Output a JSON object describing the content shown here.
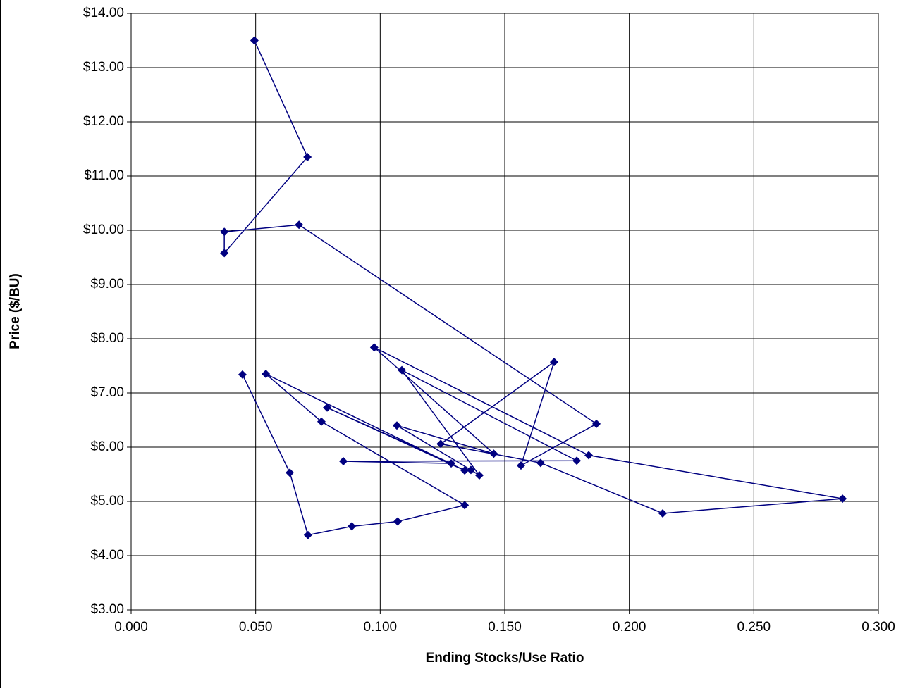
{
  "chart_data": {
    "type": "scatter-line",
    "x_label": "Ending Stocks/Use Ratio",
    "y_label": "Price ($/BU)",
    "xlim": [
      0,
      0.3
    ],
    "ylim": [
      3,
      14
    ],
    "xticks": [
      {
        "value": 0,
        "label": "0.000"
      },
      {
        "value": 0.05,
        "label": "0.050"
      },
      {
        "value": 0.1,
        "label": "0.100"
      },
      {
        "value": 0.15,
        "label": "0.150"
      },
      {
        "value": 0.2,
        "label": "0.200"
      },
      {
        "value": 0.25,
        "label": "0.250"
      },
      {
        "value": 0.3,
        "label": "0.300"
      }
    ],
    "yticks": [
      {
        "value": 3,
        "label": "$3.00"
      },
      {
        "value": 4,
        "label": "$4.00"
      },
      {
        "value": 5,
        "label": "$5.00"
      },
      {
        "value": 6,
        "label": "$6.00"
      },
      {
        "value": 7,
        "label": "$7.00"
      },
      {
        "value": 8,
        "label": "$8.00"
      },
      {
        "value": 9,
        "label": "$9.00"
      },
      {
        "value": 10,
        "label": "$10.00"
      },
      {
        "value": 11,
        "label": "$11.00"
      },
      {
        "value": 12,
        "label": "$12.00"
      },
      {
        "value": 13,
        "label": "$13.00"
      },
      {
        "value": 14,
        "label": "$14.00"
      }
    ],
    "grid": true,
    "series": [
      {
        "color": "#000080",
        "x": [
          0.0447,
          0.0637,
          0.071,
          0.0886,
          0.107,
          0.1339,
          0.0764,
          0.0541,
          0.1339,
          0.0787,
          0.1285,
          0.0852,
          0.1789,
          0.1087,
          0.1398,
          0.1364,
          0.1067,
          0.1456,
          0.0976,
          0.1837,
          0.2856,
          0.2134,
          0.1644,
          0.1243,
          0.1698,
          0.1565,
          0.1868,
          0.0674,
          0.0374,
          0.0374,
          0.0708,
          0.0495
        ],
        "values": [
          7.34,
          5.53,
          4.38,
          4.54,
          4.63,
          4.93,
          6.47,
          7.35,
          5.57,
          6.73,
          5.7,
          5.74,
          5.75,
          7.42,
          5.48,
          5.58,
          6.4,
          5.88,
          7.84,
          5.85,
          5.05,
          4.78,
          5.71,
          6.06,
          7.57,
          5.66,
          6.43,
          10.1,
          9.97,
          9.58,
          11.35,
          13.5
        ]
      }
    ]
  }
}
